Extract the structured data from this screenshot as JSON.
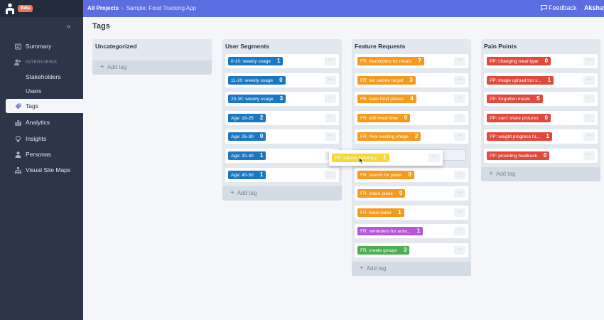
{
  "app": {
    "beta_label": "Beta",
    "breadcrumb": [
      "All Projects",
      "Sample: Food Tracking App"
    ],
    "feedback_label": "Feedback",
    "user_name": "Akshay"
  },
  "sidebar": {
    "collapse_icon": "chevron-double-left-icon",
    "summary": "Summary",
    "interviews_section": "INTERVIEWS",
    "stakeholders": "Stakeholders",
    "users": "Users",
    "tags": "Tags",
    "analytics": "Analytics",
    "insights": "Insights",
    "personas": "Personas",
    "visual_site_maps": "Visual Site Maps"
  },
  "page": {
    "title": "Tags",
    "add_tag_label": "Add tag"
  },
  "columns": [
    {
      "title": "Uncategorized",
      "tags": []
    },
    {
      "title": "User Segments",
      "tags": [
        {
          "label": "0-10: weekly usage",
          "count": "1",
          "color": "#1a78c2"
        },
        {
          "label": "11-20: weekly usage",
          "count": "0",
          "color": "#1a78c2"
        },
        {
          "label": "20-30: weekly usage",
          "count": "3",
          "color": "#1a78c2"
        },
        {
          "label": "Age: 18-25",
          "count": "2",
          "color": "#1a78c2"
        },
        {
          "label": "Age: 26-30",
          "count": "0",
          "color": "#1a78c2"
        },
        {
          "label": "Age: 30-40",
          "count": "1",
          "color": "#1a78c2"
        },
        {
          "label": "Age: 40-50",
          "count": "1",
          "color": "#1a78c2"
        }
      ]
    },
    {
      "title": "Feature Requests",
      "tags": [
        {
          "label": "FR: Reminders for meals",
          "count": "7",
          "color": "#f59a1f"
        },
        {
          "label": "FR: set calorie target",
          "count": "3",
          "color": "#f59a1f"
        },
        {
          "label": "FR: save food places",
          "count": "4",
          "color": "#f59a1f"
        },
        {
          "label": "FR: edit meal time",
          "count": "0",
          "color": "#f59a1f"
        },
        {
          "label": "FR: Pick existing image",
          "count": "2",
          "color": "#f59a1f"
        },
        {
          "label": "",
          "count": "",
          "color": ""
        },
        {
          "label": "FR: search for place",
          "count": "0",
          "color": "#f59a1f"
        },
        {
          "label": "FR: share place",
          "count": "0",
          "color": "#f59a1f"
        },
        {
          "label": "FR: track water",
          "count": "1",
          "color": "#f59a1f"
        },
        {
          "label": "FR: reminders for activ...",
          "count": "1",
          "color": "#b557d8"
        },
        {
          "label": "FR: create groups",
          "count": "3",
          "color": "#4cae4f"
        }
      ]
    },
    {
      "title": "Pain Points",
      "tags": [
        {
          "label": "PP: changing meal type",
          "count": "0",
          "color": "#e04a3c"
        },
        {
          "label": "PP: image upload too s...",
          "count": "1",
          "color": "#e04a3c"
        },
        {
          "label": "PP: forgotten meals",
          "count": "5",
          "color": "#e04a3c"
        },
        {
          "label": "PP: can't share pictures",
          "count": "0",
          "color": "#e04a3c"
        },
        {
          "label": "PP: weight progress hi...",
          "count": "1",
          "color": "#e04a3c"
        },
        {
          "label": "PP: providing feedback",
          "count": "0",
          "color": "#e04a3c"
        }
      ]
    }
  ],
  "drag": {
    "label": "PP: calorie accuracy",
    "count": "1",
    "color": "#f3d838"
  },
  "more_label": "···"
}
